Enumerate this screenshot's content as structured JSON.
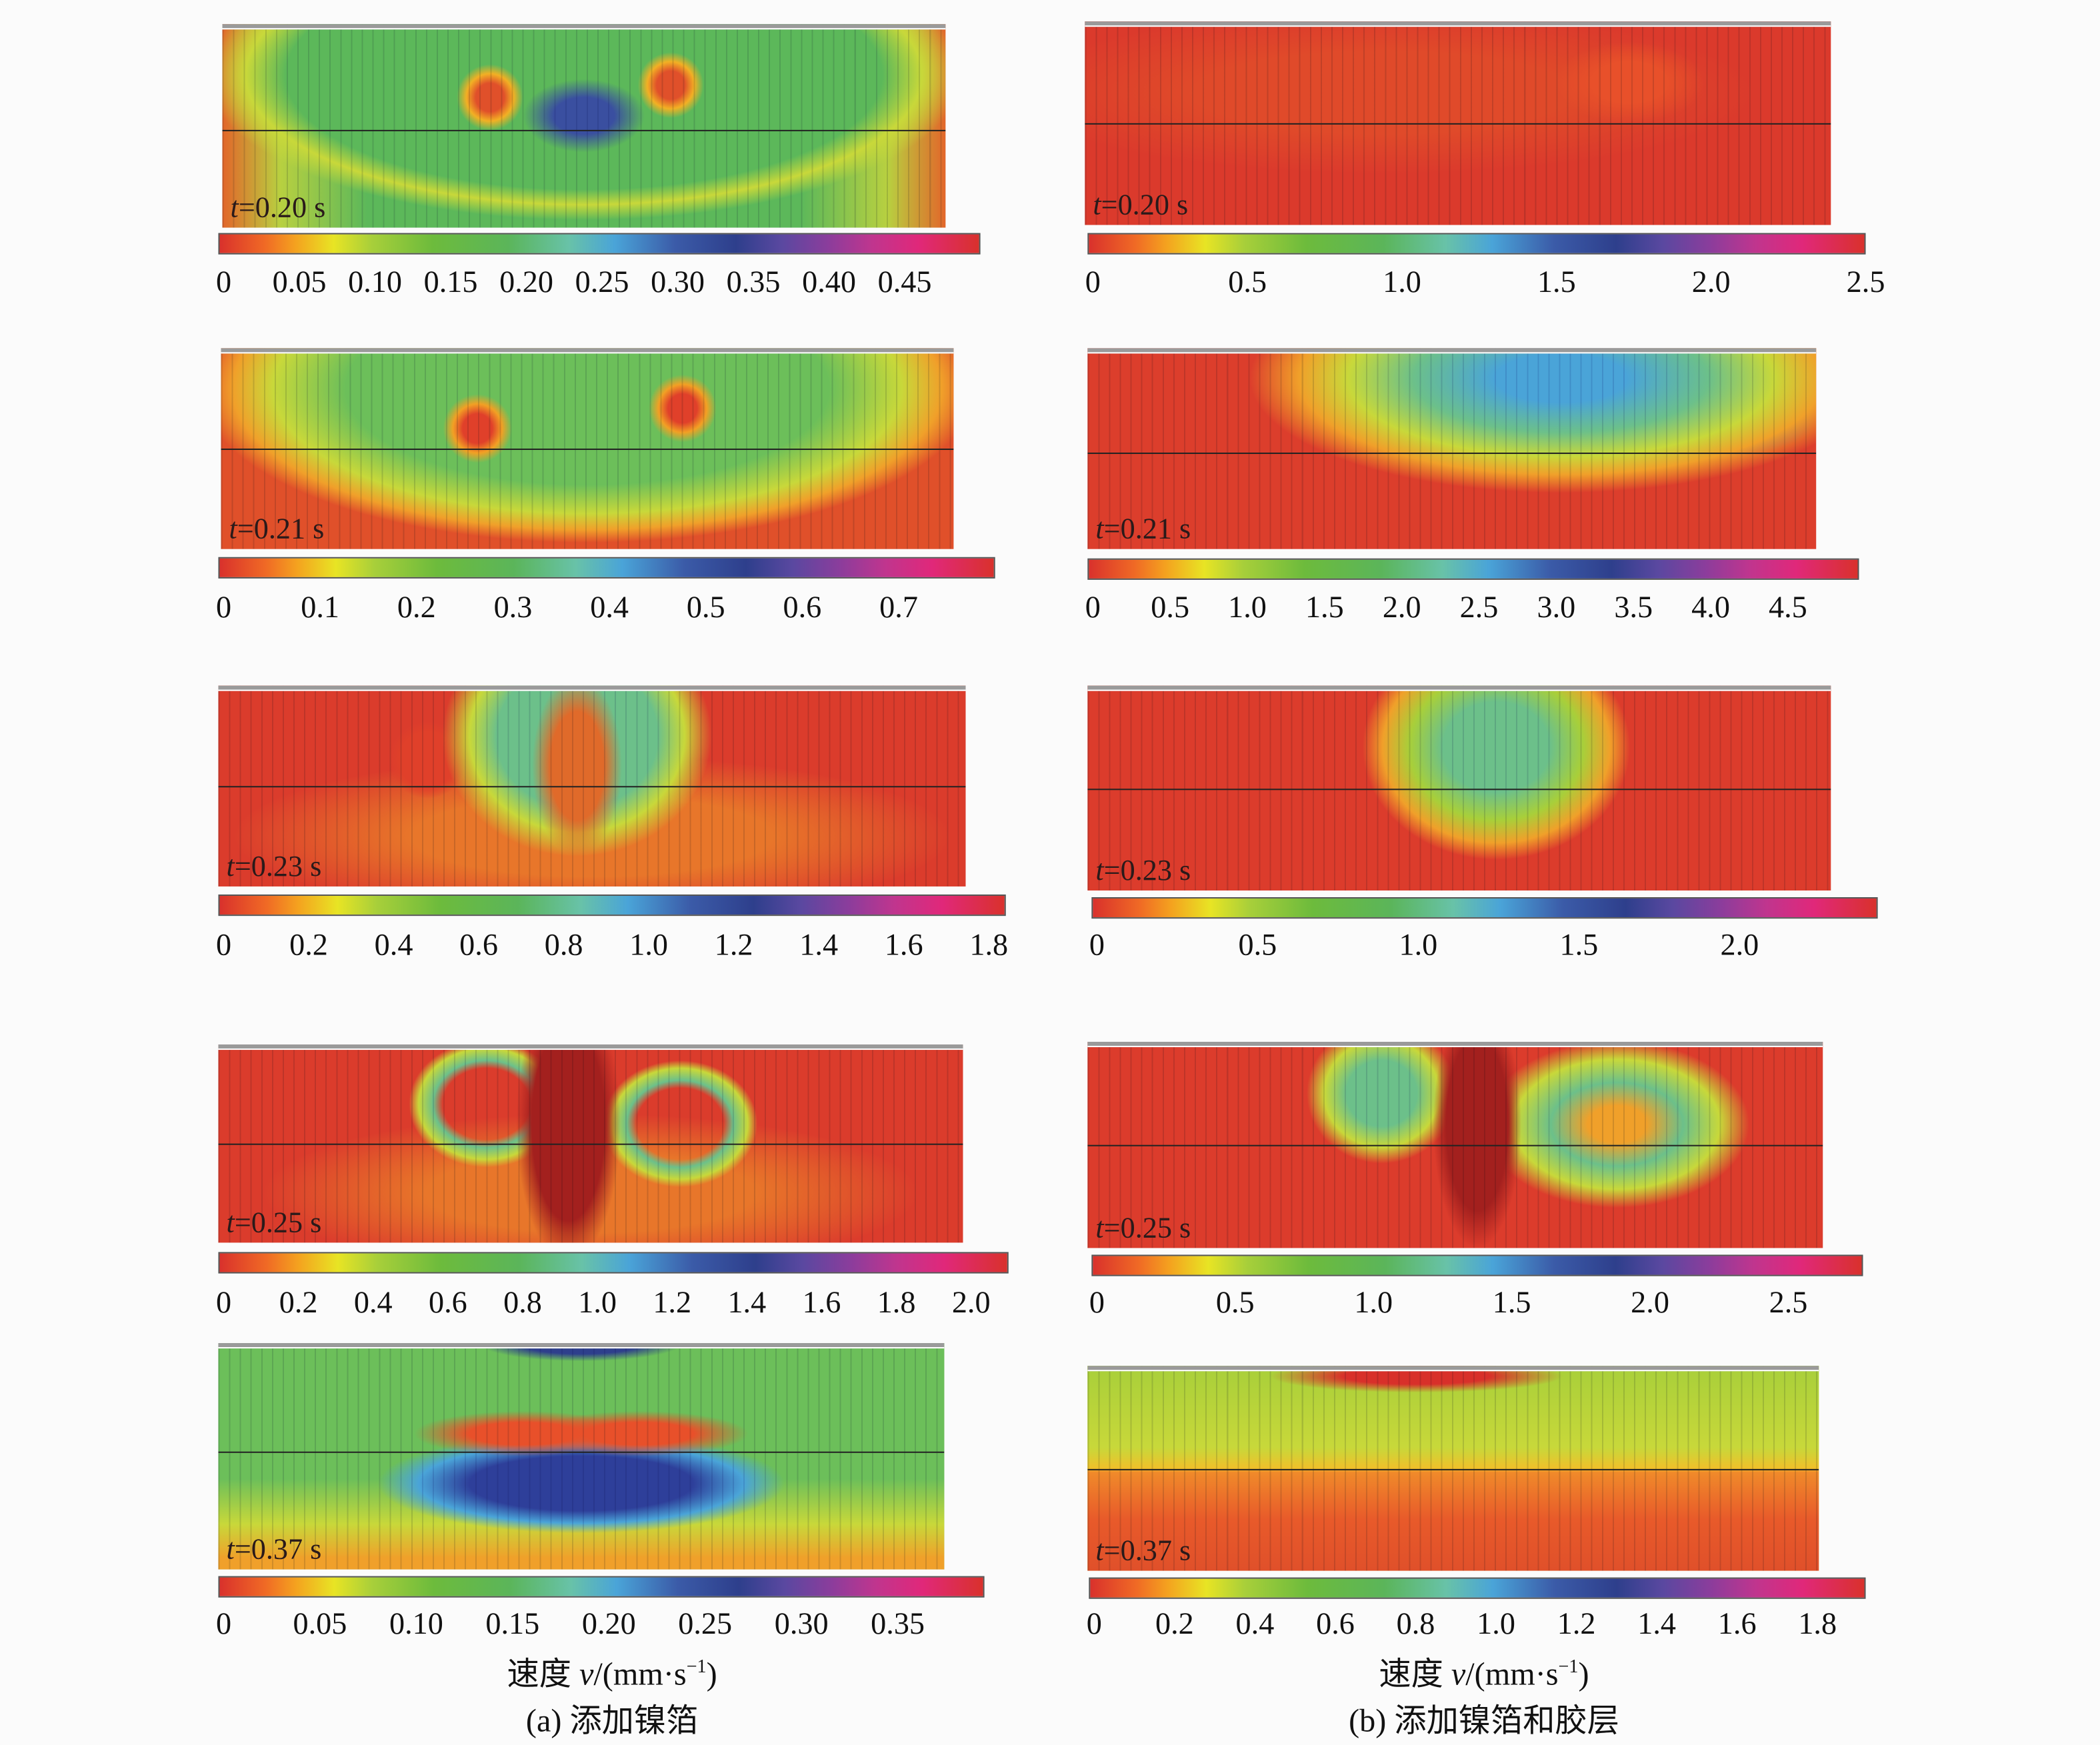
{
  "columns": [
    {
      "caption": "(a) 添加镍箔",
      "colorbar_label": {
        "quantity": "速度 ",
        "symbol": "v",
        "unit_open": "/(mm·s",
        "exponent": "−1",
        "unit_close": ")"
      },
      "panels": [
        {
          "time_symbol": "t",
          "time_value": "=0.20 s",
          "range": [
            0,
            0.5
          ],
          "ticks": [
            0,
            0.05,
            0.1,
            0.15,
            0.2,
            0.25,
            0.3,
            0.35,
            0.4,
            0.45
          ],
          "tick_labels": [
            "0",
            "0.05",
            "0.10",
            "0.15",
            "0.20",
            "0.25",
            "0.30",
            "0.35",
            "0.40",
            "0.45"
          ]
        },
        {
          "time_symbol": "t",
          "time_value": "=0.21 s",
          "range": [
            0,
            0.8
          ],
          "ticks": [
            0,
            0.1,
            0.2,
            0.3,
            0.4,
            0.5,
            0.6,
            0.7
          ],
          "tick_labels": [
            "0",
            "0.1",
            "0.2",
            "0.3",
            "0.4",
            "0.5",
            "0.6",
            "0.7"
          ]
        },
        {
          "time_symbol": "t",
          "time_value": "=0.23 s",
          "range": [
            0,
            1.84
          ],
          "ticks": [
            0,
            0.2,
            0.4,
            0.6,
            0.8,
            1.0,
            1.2,
            1.4,
            1.6,
            1.8
          ],
          "tick_labels": [
            "0",
            "0.2",
            "0.4",
            "0.6",
            "0.8",
            "1.0",
            "1.2",
            "1.4",
            "1.6",
            "1.8"
          ]
        },
        {
          "time_symbol": "t",
          "time_value": "=0.25 s",
          "range": [
            0,
            2.1
          ],
          "ticks": [
            0,
            0.2,
            0.4,
            0.6,
            0.8,
            1.0,
            1.2,
            1.4,
            1.6,
            1.8,
            2.0
          ],
          "tick_labels": [
            "0",
            "0.2",
            "0.4",
            "0.6",
            "0.8",
            "1.0",
            "1.2",
            "1.4",
            "1.6",
            "1.8",
            "2.0"
          ]
        },
        {
          "time_symbol": "t",
          "time_value": "=0.37 s",
          "range": [
            0,
            0.395
          ],
          "ticks": [
            0,
            0.05,
            0.1,
            0.15,
            0.2,
            0.25,
            0.3,
            0.35
          ],
          "tick_labels": [
            "0",
            "0.05",
            "0.10",
            "0.15",
            "0.20",
            "0.25",
            "0.30",
            "0.35"
          ]
        }
      ]
    },
    {
      "caption": "(b) 添加镍箔和胶层",
      "colorbar_label": {
        "quantity": "速度 ",
        "symbol": "v",
        "unit_open": "/(mm·s",
        "exponent": "−1",
        "unit_close": ")"
      },
      "panels": [
        {
          "time_symbol": "t",
          "time_value": "=0.20 s",
          "range": [
            0,
            2.5
          ],
          "ticks": [
            0,
            0.5,
            1.0,
            1.5,
            2.0,
            2.5
          ],
          "tick_labels": [
            "0",
            "0.5",
            "1.0",
            "1.5",
            "2.0",
            "2.5"
          ]
        },
        {
          "time_symbol": "t",
          "time_value": "=0.21 s",
          "range": [
            0,
            4.96
          ],
          "ticks": [
            0,
            0.5,
            1.0,
            1.5,
            2.0,
            2.5,
            3.0,
            3.5,
            4.0,
            4.5
          ],
          "tick_labels": [
            "0",
            "0.5",
            "1.0",
            "1.5",
            "2.0",
            "2.5",
            "3.0",
            "3.5",
            "4.0",
            "4.5"
          ]
        },
        {
          "time_symbol": "t",
          "time_value": "=0.23 s",
          "range": [
            0,
            2.43
          ],
          "ticks": [
            0,
            0.5,
            1.0,
            1.5,
            2.0
          ],
          "tick_labels": [
            "0",
            "0.5",
            "1.0",
            "1.5",
            "2.0"
          ]
        },
        {
          "time_symbol": "t",
          "time_value": "=0.25 s",
          "range": [
            0,
            2.77
          ],
          "ticks": [
            0,
            0.5,
            1.0,
            1.5,
            2.0,
            2.5
          ],
          "tick_labels": [
            "0",
            "0.5",
            "1.0",
            "1.5",
            "2.0",
            "2.5"
          ]
        },
        {
          "time_symbol": "t",
          "time_value": "=0.37 s",
          "range": [
            0,
            1.92
          ],
          "ticks": [
            0,
            0.2,
            0.4,
            0.6,
            0.8,
            1.0,
            1.2,
            1.4,
            1.6,
            1.8
          ],
          "tick_labels": [
            "0",
            "0.2",
            "0.4",
            "0.6",
            "0.8",
            "1.0",
            "1.2",
            "1.4",
            "1.6",
            "1.8"
          ]
        }
      ]
    }
  ],
  "colors": {
    "colormap": [
      "#d9312c",
      "#f4a21f",
      "#e8e424",
      "#6dbb3c",
      "#68c2a8",
      "#4aa4d8",
      "#2e3f8c",
      "#8a3d9c",
      "#e0287a",
      "#d9312c"
    ]
  }
}
